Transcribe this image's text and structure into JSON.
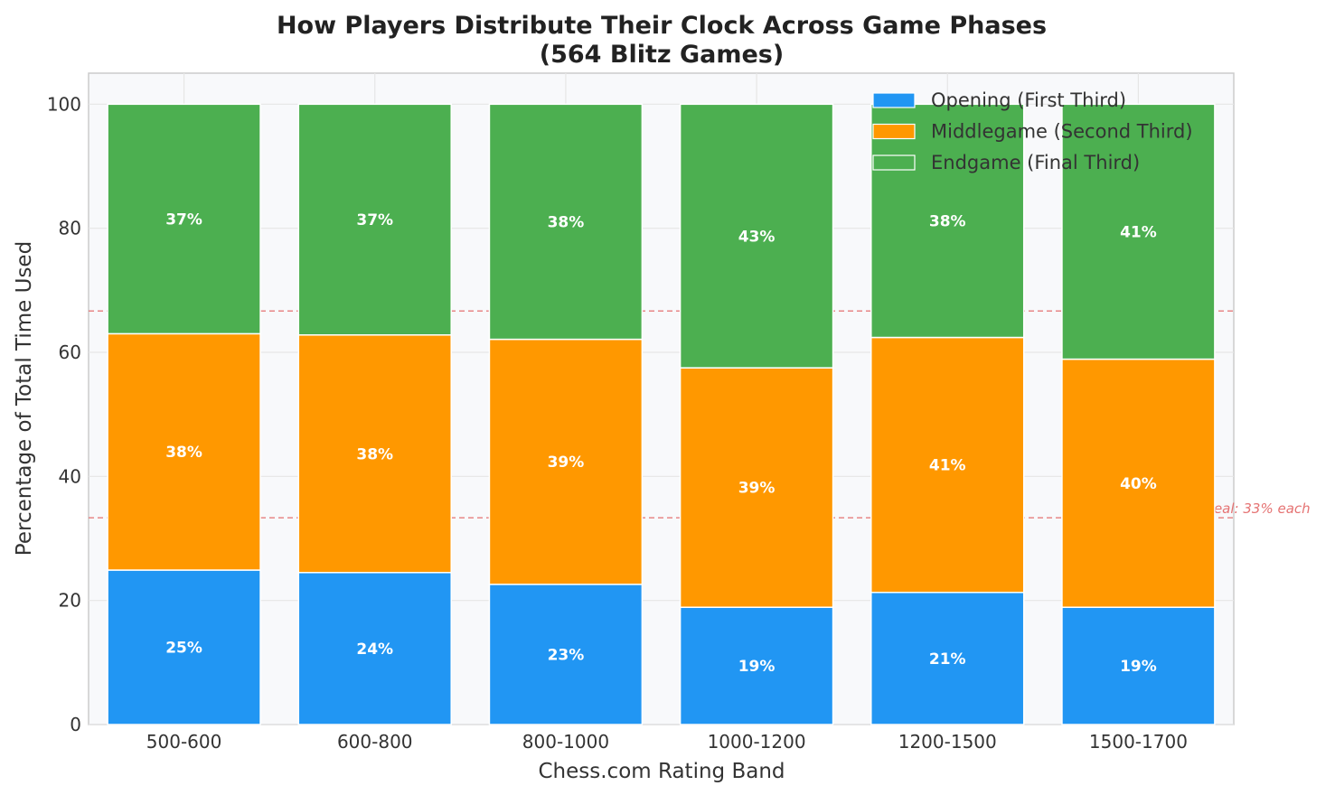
{
  "chart_data": {
    "type": "bar",
    "stacked": true,
    "title": "How Players Distribute Their Clock Across Game Phases",
    "subtitle": "(564 Blitz Games)",
    "xlabel": "Chess.com Rating Band",
    "ylabel": "Percentage of Total Time Used",
    "ylim": [
      0,
      105
    ],
    "yticks": [
      0,
      20,
      40,
      60,
      80,
      100
    ],
    "grid": true,
    "legend_position": "top-right",
    "categories": [
      "500-600",
      "600-800",
      "800-1000",
      "1000-1200",
      "1200-1500",
      "1500-1700"
    ],
    "series": [
      {
        "name": "Opening (First Third)",
        "color": "#2196F3",
        "values": [
          24.9,
          24.5,
          22.6,
          18.9,
          21.3,
          18.9
        ],
        "labels": [
          "25%",
          "24%",
          "23%",
          "19%",
          "21%",
          "19%"
        ]
      },
      {
        "name": "Middlegame (Second Third)",
        "color": "#FF9800",
        "values": [
          38.1,
          38.3,
          39.5,
          38.6,
          41.1,
          40.0
        ],
        "labels": [
          "38%",
          "38%",
          "39%",
          "39%",
          "41%",
          "40%"
        ]
      },
      {
        "name": "Endgame (Final Third)",
        "color": "#4CAF50",
        "values": [
          37.0,
          37.2,
          37.9,
          42.5,
          37.6,
          41.1
        ],
        "labels": [
          "37%",
          "37%",
          "38%",
          "43%",
          "38%",
          "41%"
        ]
      }
    ],
    "reference_lines": [
      {
        "y": 33.33,
        "label": "Ideal: 33% each",
        "color": "#E57373"
      },
      {
        "y": 66.67,
        "label": "",
        "color": "#E57373"
      }
    ]
  }
}
